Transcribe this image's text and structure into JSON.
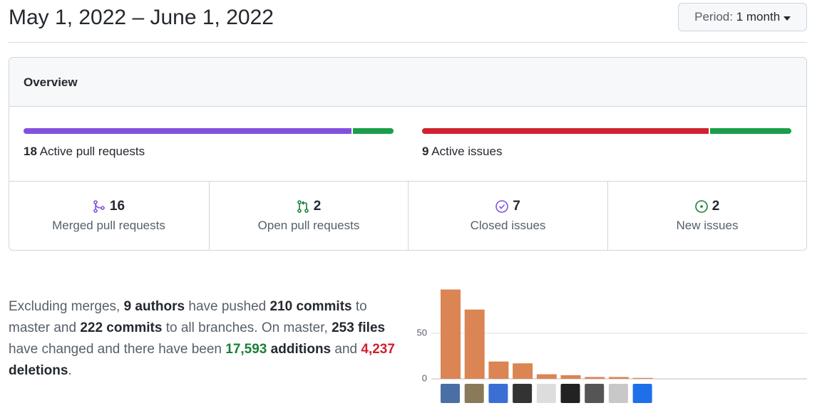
{
  "header": {
    "title": "May 1, 2022 – June 1, 2022",
    "period": {
      "label": "Period:",
      "value": "1 month"
    }
  },
  "overview": {
    "title": "Overview",
    "pull_requests": {
      "count": 18,
      "label": "Active pull requests"
    },
    "issues": {
      "count": 9,
      "label": "Active issues"
    },
    "stats": [
      {
        "value": 16,
        "label": "Merged pull requests",
        "color": "#8250df"
      },
      {
        "value": 2,
        "label": "Open pull requests",
        "color": "#1a7f37"
      },
      {
        "value": 7,
        "label": "Closed issues",
        "color": "#cf222e"
      },
      {
        "value": 2,
        "label": "New issues",
        "color": "#1a7f37"
      }
    ]
  },
  "summary": [
    {
      "text": "Excluding merges, ",
      "style": "plain"
    },
    {
      "text": "9 authors",
      "style": "bold"
    },
    {
      "text": " have pushed ",
      "style": "plain"
    },
    {
      "text": "210 commits",
      "style": "bold"
    },
    {
      "text": " to master and ",
      "style": "plain"
    },
    {
      "text": "222 commits",
      "style": "bold"
    },
    {
      "text": " to all branches. On master, ",
      "style": "plain"
    },
    {
      "text": "253 files",
      "style": "bold"
    },
    {
      "text": " have changed and there have been ",
      "style": "plain"
    },
    {
      "text": "17,593",
      "style": "green"
    },
    {
      "text": " additions",
      "style": "bold"
    },
    {
      "text": " and ",
      "style": "plain"
    },
    {
      "text": "4,237",
      "style": "red"
    },
    {
      "text": " deletions",
      "style": "bold"
    },
    {
      "text": ".",
      "style": "plain"
    }
  ],
  "commit_chart": {
    "type": "bar",
    "values": [
      98,
      76,
      19,
      17,
      5,
      4,
      2,
      2,
      1
    ],
    "color": "#db8454",
    "ylim": [
      0,
      100
    ],
    "yticks": [
      0,
      50
    ],
    "grid": true
  }
}
